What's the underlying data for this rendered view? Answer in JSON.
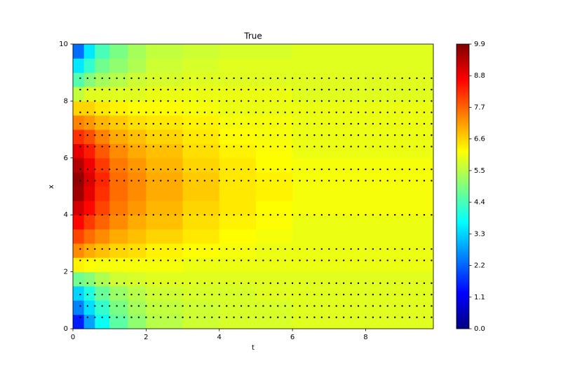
{
  "chart_data": {
    "type": "heatmap",
    "title": "True",
    "x_label": "t",
    "y_label": "x",
    "xlim": [
      0,
      9.85
    ],
    "ylim": [
      0,
      10
    ],
    "xticks": [
      0,
      2,
      4,
      6,
      8
    ],
    "yticks": [
      0,
      2,
      4,
      6,
      8,
      10
    ],
    "colormap": "jet",
    "clim": [
      0,
      9.9
    ],
    "cticks": [
      {
        "value": 0,
        "label": "0.0"
      },
      1.1,
      2.2,
      3.3,
      4.4,
      5.5,
      6.6,
      7.7,
      8.8,
      9.9
    ],
    "t_edges": [
      0,
      0.3,
      0.6,
      1,
      1.5,
      2,
      3,
      4,
      5,
      6,
      9.85
    ],
    "x_edges": [
      0,
      0.5,
      1,
      1.5,
      2,
      2.5,
      3,
      3.5,
      4,
      4.5,
      5,
      5.5,
      6,
      6.5,
      7,
      7.5,
      8,
      8.5,
      9,
      9.5,
      10
    ],
    "z": [
      [
        1.5,
        2.5,
        3.3,
        4.8,
        6.3,
        7.3,
        8.0,
        8.6,
        9.1,
        9.6,
        9.7,
        9.4,
        8.9,
        8.2,
        7.4,
        6.6,
        5.6,
        4.5,
        3.5,
        2.3
      ],
      [
        2.8,
        3.4,
        4.0,
        5.0,
        6.2,
        7.0,
        7.6,
        8.1,
        8.6,
        8.9,
        9.0,
        8.8,
        8.4,
        7.9,
        7.2,
        6.6,
        5.9,
        5.0,
        4.2,
        3.5
      ],
      [
        3.8,
        4.2,
        4.7,
        5.4,
        6.1,
        6.8,
        7.3,
        7.7,
        8.0,
        8.2,
        8.3,
        8.1,
        7.8,
        7.4,
        6.9,
        6.4,
        5.9,
        5.3,
        4.8,
        4.4
      ],
      [
        4.6,
        4.9,
        5.2,
        5.7,
        6.1,
        6.6,
        7.0,
        7.3,
        7.5,
        7.6,
        7.6,
        7.5,
        7.3,
        7.0,
        6.7,
        6.3,
        5.9,
        5.5,
        5.1,
        4.9
      ],
      [
        5.1,
        5.3,
        5.5,
        5.8,
        6.1,
        6.5,
        6.8,
        7.0,
        7.2,
        7.3,
        7.3,
        7.2,
        7.0,
        6.8,
        6.5,
        6.2,
        5.9,
        5.7,
        5.4,
        5.3
      ],
      [
        5.5,
        5.6,
        5.7,
        5.9,
        6.1,
        6.3,
        6.6,
        6.8,
        6.9,
        7.0,
        7.0,
        6.9,
        6.8,
        6.6,
        6.4,
        6.2,
        6.0,
        5.8,
        5.7,
        5.6
      ],
      [
        5.7,
        5.7,
        5.8,
        5.9,
        6.0,
        6.2,
        6.4,
        6.5,
        6.6,
        6.7,
        6.7,
        6.6,
        6.5,
        6.4,
        6.3,
        6.1,
        6.0,
        5.9,
        5.8,
        5.7
      ],
      [
        5.8,
        5.8,
        5.8,
        5.9,
        6.0,
        6.1,
        6.2,
        6.3,
        6.4,
        6.4,
        6.4,
        6.4,
        6.3,
        6.2,
        6.1,
        6.0,
        6.0,
        5.9,
        5.9,
        5.8
      ],
      [
        5.8,
        5.8,
        5.9,
        5.9,
        6.0,
        6.0,
        6.1,
        6.2,
        6.2,
        6.3,
        6.3,
        6.2,
        6.2,
        6.1,
        6.1,
        6.0,
        6.0,
        5.9,
        5.9,
        5.8
      ],
      [
        5.9,
        5.9,
        5.9,
        5.9,
        6.0,
        6.0,
        6.0,
        6.0,
        6.1,
        6.1,
        6.1,
        6.1,
        6.0,
        6.0,
        6.0,
        6.0,
        5.9,
        5.9,
        5.9,
        5.9
      ]
    ],
    "sample_color": "#000000",
    "sample_t": [
      0.2,
      0.4,
      0.6,
      0.8,
      1.0,
      1.2,
      1.4,
      1.6,
      1.8,
      2.0,
      2.2,
      2.4,
      2.6,
      2.8,
      3.0,
      3.2,
      3.4,
      3.6,
      3.8,
      4.0,
      4.2,
      4.4,
      4.6,
      4.8,
      5.0,
      5.2,
      5.4,
      5.6,
      5.8,
      6.0,
      6.2,
      6.4,
      6.6,
      6.8,
      7.0,
      7.2,
      7.4,
      7.6,
      7.8,
      8.0,
      8.2,
      8.4,
      8.6,
      8.8,
      9.0,
      9.2,
      9.4,
      9.6,
      9.8
    ],
    "sample_x": [
      0.4,
      0.8,
      1.2,
      1.6,
      2.4,
      2.8,
      4.0,
      5.2,
      5.6,
      6.4,
      6.8,
      7.2,
      7.6,
      8.0,
      8.4,
      8.8
    ]
  }
}
